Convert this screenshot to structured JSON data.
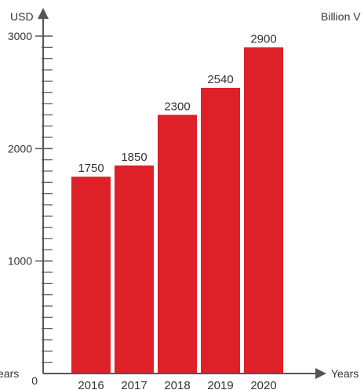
{
  "chart_data": {
    "type": "bar",
    "title": "",
    "categories": [
      "2016",
      "2017",
      "2018",
      "2019",
      "2020"
    ],
    "values": [
      1750,
      1850,
      2300,
      2540,
      2900
    ],
    "data_labels": [
      "1750",
      "1850",
      "2300",
      "2540",
      "2900"
    ],
    "ylabel": "USD",
    "xlabel": "Years",
    "left_label": "ears",
    "right_label": "Billion V",
    "ylim": [
      0,
      3000
    ],
    "yticks": [
      0,
      1000,
      2000,
      3000
    ],
    "ytick_labels": [
      "0",
      "1000",
      "2000",
      "3000"
    ],
    "grid": false,
    "legend": "none",
    "bar_color": "#de2029",
    "axis_color": "#555555"
  }
}
